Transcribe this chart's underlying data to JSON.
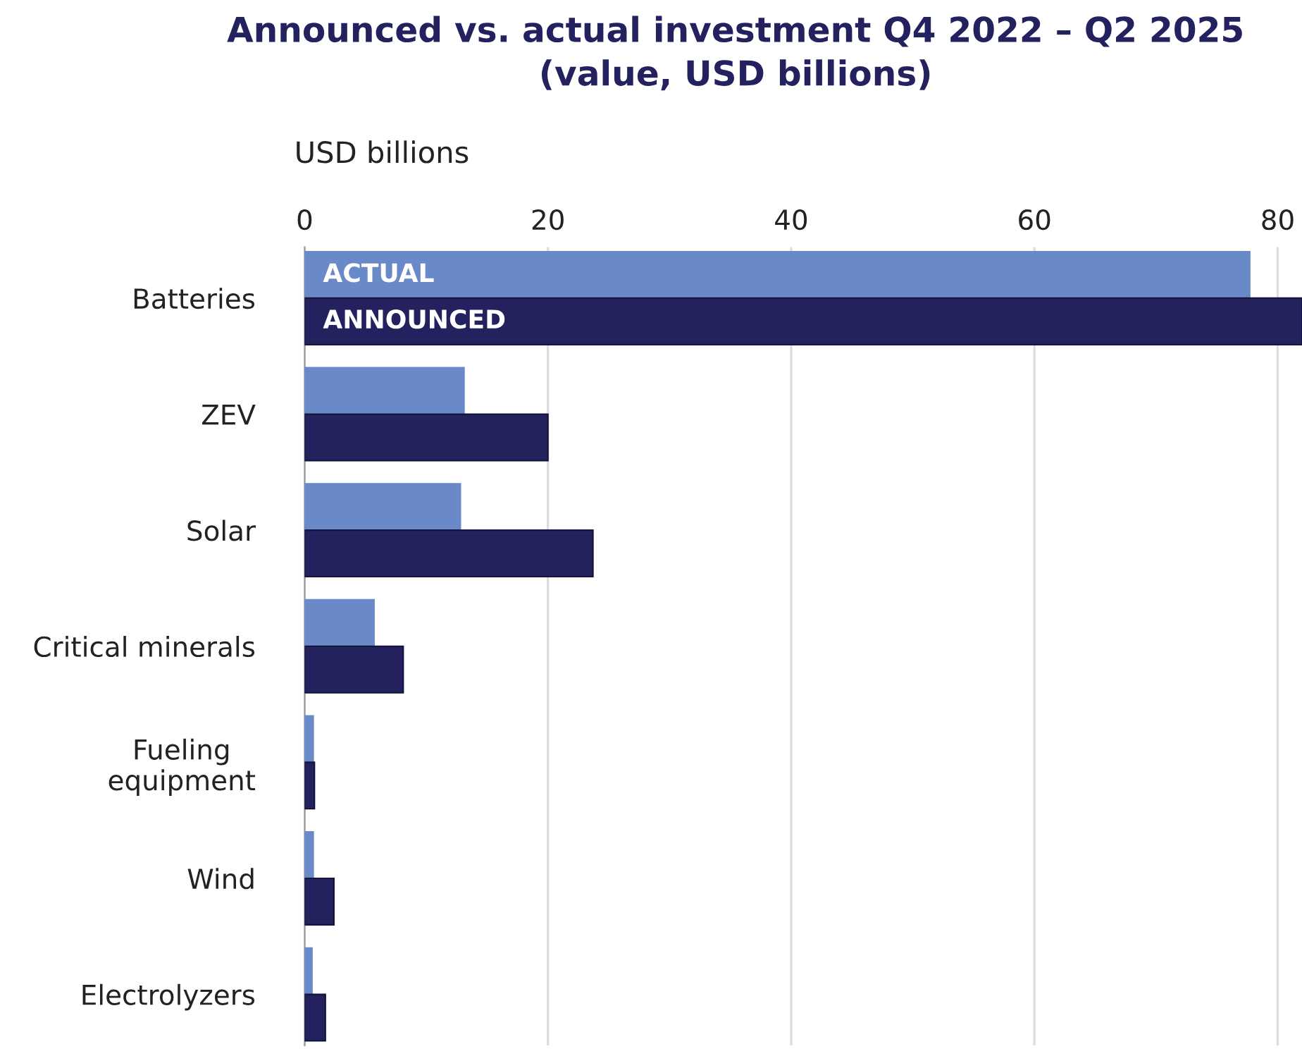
{
  "chart_data": {
    "type": "bar",
    "orientation": "horizontal",
    "title": "Announced vs. actual investment Q4 2022 – Q2 2025\n(value, USD billions)",
    "xlabel": "USD billions",
    "categories": [
      "Batteries",
      "ZEV",
      "Solar",
      "Critical minerals",
      "Fueling\nequipment",
      "Wind",
      "Electrolyzers"
    ],
    "series": [
      {
        "name": "ACTUAL",
        "color": "#6a89c8",
        "values": [
          77.7,
          13.1,
          12.8,
          5.7,
          0.7,
          0.7,
          0.6
        ]
      },
      {
        "name": "ANNOUNCED",
        "color": "#23215e",
        "values": [
          82,
          20.0,
          23.7,
          8.1,
          0.8,
          2.4,
          1.7
        ]
      }
    ],
    "xlim": [
      0,
      82
    ],
    "xticks": [
      0,
      20,
      40,
      60,
      80
    ],
    "grid": "x",
    "legend": false
  }
}
